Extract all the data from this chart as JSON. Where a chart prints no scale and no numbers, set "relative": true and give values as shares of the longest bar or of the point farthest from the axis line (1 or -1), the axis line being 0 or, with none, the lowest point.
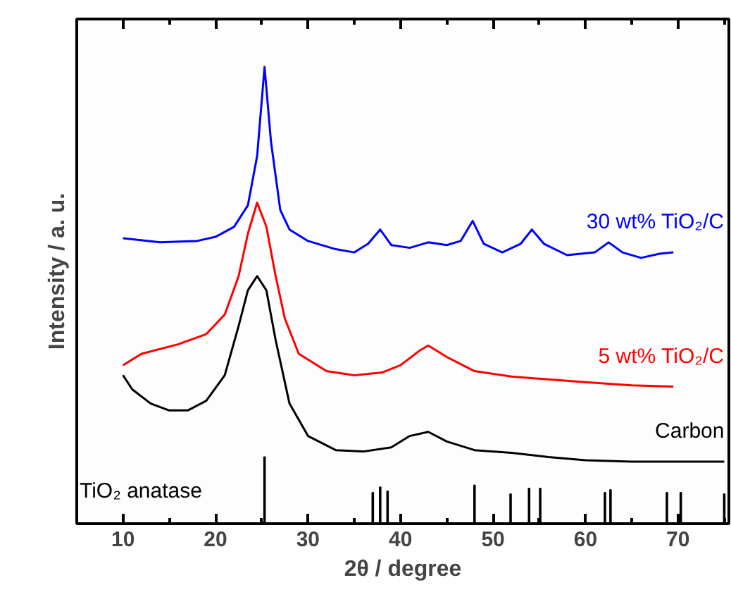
{
  "chart_data": {
    "type": "line",
    "xlabel": "2θ / degree",
    "ylabel": "Intensity / a. u.",
    "relative": true,
    "xlim": [
      5,
      75.5
    ],
    "xticks": [
      10,
      {
        "value": 15,
        "label": null
      },
      20,
      {
        "value": 25,
        "label": null
      },
      30,
      {
        "value": 35,
        "label": null
      },
      40,
      {
        "value": 45,
        "label": null
      },
      50,
      {
        "value": 55,
        "label": null
      },
      60,
      {
        "value": 65,
        "label": null
      },
      70,
      {
        "value": 75,
        "label": null
      }
    ],
    "series": [
      {
        "name": "30 wt% TiO₂/C",
        "color": "#0000ff",
        "x": [
          10,
          14,
          18,
          20,
          22,
          23.5,
          24.5,
          25.3,
          26,
          27,
          28,
          30,
          33,
          35,
          36.5,
          37.8,
          39,
          41,
          43,
          45,
          46.5,
          47.8,
          49,
          51,
          53,
          54.2,
          55.5,
          58,
          61,
          62.5,
          64,
          66,
          68,
          69.5
        ],
        "values": [
          0.625,
          0.616,
          0.619,
          0.628,
          0.65,
          0.697,
          0.805,
          1.0,
          0.836,
          0.687,
          0.644,
          0.619,
          0.601,
          0.594,
          0.613,
          0.644,
          0.61,
          0.604,
          0.616,
          0.61,
          0.619,
          0.663,
          0.613,
          0.594,
          0.613,
          0.644,
          0.613,
          0.588,
          0.594,
          0.616,
          0.594,
          0.582,
          0.591,
          0.594
        ]
      },
      {
        "name": "5 wt% TiO₂/C",
        "color": "#ff0000",
        "x": [
          10,
          12,
          16,
          19,
          21,
          22.5,
          23.5,
          24.5,
          25.5,
          26.5,
          27.5,
          29,
          32,
          35,
          38,
          40,
          42,
          43,
          45,
          48,
          52,
          56,
          60,
          65,
          69.5
        ],
        "values": [
          0.347,
          0.372,
          0.393,
          0.415,
          0.458,
          0.542,
          0.635,
          0.703,
          0.65,
          0.542,
          0.449,
          0.372,
          0.334,
          0.325,
          0.331,
          0.347,
          0.378,
          0.39,
          0.365,
          0.334,
          0.322,
          0.316,
          0.31,
          0.303,
          0.3
        ]
      },
      {
        "name": "Carbon",
        "color": "#000000",
        "x": [
          10,
          11,
          13,
          15,
          17,
          19,
          21,
          22.5,
          23.5,
          24.5,
          25.5,
          26.5,
          28,
          30,
          33,
          36,
          39,
          41,
          43,
          45,
          48,
          52,
          56,
          60,
          65,
          70,
          75
        ],
        "values": [
          0.325,
          0.294,
          0.263,
          0.248,
          0.248,
          0.269,
          0.325,
          0.433,
          0.511,
          0.542,
          0.511,
          0.402,
          0.263,
          0.192,
          0.161,
          0.158,
          0.167,
          0.192,
          0.201,
          0.18,
          0.161,
          0.155,
          0.146,
          0.139,
          0.136,
          0.136,
          0.136
        ]
      },
      {
        "name": "TiO₂ anatase",
        "type": "bar",
        "color": "#000000",
        "x": [
          25.3,
          37.0,
          37.8,
          38.6,
          48.0,
          51.9,
          53.9,
          55.1,
          62.1,
          62.7,
          68.8,
          70.3,
          75.0
        ],
        "values": [
          0.146,
          0.068,
          0.08,
          0.071,
          0.084,
          0.065,
          0.077,
          0.077,
          0.068,
          0.074,
          0.068,
          0.068,
          0.065
        ]
      }
    ]
  }
}
